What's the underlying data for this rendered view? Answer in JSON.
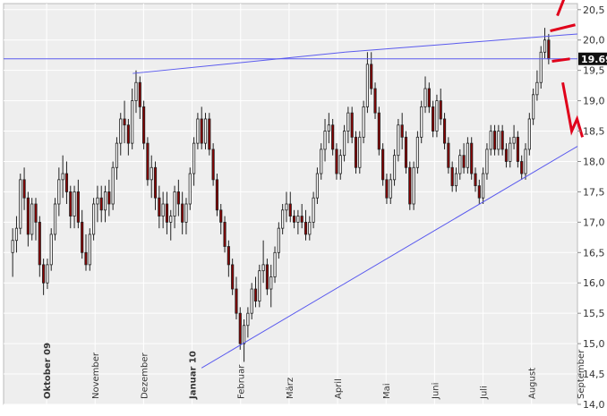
{
  "chart_data": {
    "type": "candlestick",
    "y_axis": {
      "side": "right",
      "ylim": [
        14.0,
        20.6
      ],
      "ticks": [
        14.0,
        14.5,
        15.0,
        15.5,
        16.0,
        16.5,
        17.0,
        17.5,
        18.0,
        18.5,
        19.0,
        19.5,
        20.0,
        20.5
      ]
    },
    "x_axis": {
      "tick_labels": [
        {
          "label": "Oktober 09",
          "bold": true
        },
        {
          "label": "November",
          "bold": false
        },
        {
          "label": "Dezember",
          "bold": false
        },
        {
          "label": "Januar 10",
          "bold": true
        },
        {
          "label": "Februar",
          "bold": false
        },
        {
          "label": "März",
          "bold": false
        },
        {
          "label": "April",
          "bold": false
        },
        {
          "label": "Mai",
          "bold": false
        },
        {
          "label": "Juni",
          "bold": false
        },
        {
          "label": "Juli",
          "bold": false
        },
        {
          "label": "August",
          "bold": false
        },
        {
          "label": "September",
          "bold": false
        }
      ]
    },
    "grid": true,
    "last_price": "19.69",
    "candles": [
      [
        16.5,
        16.9,
        16.1,
        16.7
      ],
      [
        16.7,
        17.1,
        16.5,
        16.9
      ],
      [
        16.9,
        17.8,
        16.8,
        17.7
      ],
      [
        17.7,
        17.9,
        17.2,
        17.4
      ],
      [
        17.4,
        17.5,
        16.6,
        16.8
      ],
      [
        16.8,
        17.4,
        16.7,
        17.3
      ],
      [
        17.3,
        17.4,
        16.7,
        17.0
      ],
      [
        17.0,
        17.1,
        16.1,
        16.3
      ],
      [
        16.3,
        16.4,
        15.8,
        16.0
      ],
      [
        16.0,
        16.4,
        15.9,
        16.3
      ],
      [
        16.3,
        16.9,
        16.2,
        16.8
      ],
      [
        16.8,
        17.4,
        16.7,
        17.3
      ],
      [
        17.3,
        17.9,
        17.1,
        17.7
      ],
      [
        17.7,
        18.1,
        17.4,
        17.8
      ],
      [
        17.8,
        18.0,
        17.3,
        17.5
      ],
      [
        17.5,
        17.6,
        16.9,
        17.1
      ],
      [
        17.1,
        17.6,
        16.9,
        17.5
      ],
      [
        17.5,
        17.7,
        16.9,
        17.0
      ],
      [
        17.0,
        17.2,
        16.4,
        16.5
      ],
      [
        16.5,
        16.8,
        16.2,
        16.3
      ],
      [
        16.3,
        16.9,
        16.2,
        16.8
      ],
      [
        16.8,
        17.4,
        16.7,
        17.3
      ],
      [
        17.3,
        17.6,
        17.0,
        17.4
      ],
      [
        17.4,
        17.6,
        17.0,
        17.2
      ],
      [
        17.2,
        17.6,
        17.0,
        17.5
      ],
      [
        17.5,
        17.7,
        17.1,
        17.3
      ],
      [
        17.3,
        18.0,
        17.2,
        17.9
      ],
      [
        17.9,
        18.4,
        17.7,
        18.3
      ],
      [
        18.3,
        18.8,
        18.1,
        18.7
      ],
      [
        18.7,
        19.0,
        18.3,
        18.6
      ],
      [
        18.6,
        18.7,
        18.1,
        18.3
      ],
      [
        18.3,
        19.2,
        18.2,
        19.0
      ],
      [
        19.0,
        19.5,
        18.8,
        19.3
      ],
      [
        19.3,
        19.4,
        18.7,
        18.9
      ],
      [
        18.9,
        19.0,
        18.2,
        18.3
      ],
      [
        18.3,
        18.4,
        17.6,
        17.7
      ],
      [
        17.7,
        18.1,
        17.4,
        17.9
      ],
      [
        17.9,
        18.0,
        17.2,
        17.4
      ],
      [
        17.4,
        17.6,
        16.9,
        17.1
      ],
      [
        17.1,
        17.5,
        16.9,
        17.3
      ],
      [
        17.3,
        17.5,
        16.8,
        17.0
      ],
      [
        17.0,
        17.2,
        16.7,
        17.1
      ],
      [
        17.1,
        17.6,
        16.9,
        17.5
      ],
      [
        17.5,
        17.7,
        17.1,
        17.3
      ],
      [
        17.3,
        17.5,
        16.8,
        17.0
      ],
      [
        17.0,
        17.4,
        16.8,
        17.3
      ],
      [
        17.3,
        17.9,
        17.2,
        17.8
      ],
      [
        17.8,
        18.4,
        17.6,
        18.3
      ],
      [
        18.3,
        18.8,
        18.2,
        18.7
      ],
      [
        18.7,
        18.9,
        18.2,
        18.3
      ],
      [
        18.3,
        18.8,
        18.2,
        18.7
      ],
      [
        18.7,
        18.8,
        18.1,
        18.2
      ],
      [
        18.2,
        18.3,
        17.6,
        17.7
      ],
      [
        17.7,
        17.8,
        17.1,
        17.2
      ],
      [
        17.2,
        17.3,
        16.8,
        17.0
      ],
      [
        17.0,
        17.1,
        16.5,
        16.6
      ],
      [
        16.6,
        16.7,
        16.1,
        16.3
      ],
      [
        16.3,
        16.4,
        15.8,
        15.9
      ],
      [
        15.9,
        16.1,
        15.4,
        15.5
      ],
      [
        15.5,
        15.6,
        14.9,
        15.0
      ],
      [
        15.0,
        15.4,
        14.7,
        15.3
      ],
      [
        15.3,
        15.6,
        15.1,
        15.5
      ],
      [
        15.5,
        16.0,
        15.4,
        15.9
      ],
      [
        15.9,
        16.1,
        15.6,
        15.7
      ],
      [
        15.7,
        16.3,
        15.6,
        16.2
      ],
      [
        16.2,
        16.7,
        16.0,
        16.3
      ],
      [
        16.3,
        16.4,
        15.8,
        15.9
      ],
      [
        15.9,
        16.3,
        15.6,
        16.1
      ],
      [
        16.1,
        16.6,
        16.0,
        16.5
      ],
      [
        16.5,
        17.0,
        16.4,
        16.9
      ],
      [
        16.9,
        17.3,
        16.8,
        17.2
      ],
      [
        17.2,
        17.5,
        17.0,
        17.3
      ],
      [
        17.3,
        17.5,
        17.0,
        17.1
      ],
      [
        17.1,
        17.2,
        16.9,
        17.0
      ],
      [
        17.0,
        17.2,
        16.8,
        17.1
      ],
      [
        17.1,
        17.3,
        16.9,
        17.0
      ],
      [
        17.0,
        17.2,
        16.7,
        16.8
      ],
      [
        16.8,
        17.1,
        16.7,
        17.0
      ],
      [
        17.0,
        17.5,
        16.9,
        17.4
      ],
      [
        17.4,
        17.9,
        17.3,
        17.8
      ],
      [
        17.8,
        18.3,
        17.7,
        18.2
      ],
      [
        18.2,
        18.7,
        18.0,
        18.5
      ],
      [
        18.5,
        18.8,
        18.3,
        18.6
      ],
      [
        18.6,
        18.7,
        18.1,
        18.2
      ],
      [
        18.2,
        18.3,
        17.7,
        17.8
      ],
      [
        17.8,
        18.2,
        17.7,
        18.1
      ],
      [
        18.1,
        18.6,
        18.0,
        18.5
      ],
      [
        18.5,
        18.9,
        18.3,
        18.8
      ],
      [
        18.8,
        18.9,
        18.3,
        18.4
      ],
      [
        18.4,
        18.5,
        17.8,
        17.9
      ],
      [
        17.9,
        18.5,
        17.8,
        18.4
      ],
      [
        18.4,
        19.0,
        18.3,
        18.9
      ],
      [
        18.9,
        19.8,
        18.8,
        19.6
      ],
      [
        19.6,
        19.8,
        19.1,
        19.2
      ],
      [
        19.2,
        19.3,
        18.7,
        18.8
      ],
      [
        18.8,
        18.9,
        18.1,
        18.2
      ],
      [
        18.2,
        18.3,
        17.6,
        17.7
      ],
      [
        17.7,
        17.8,
        17.3,
        17.4
      ],
      [
        17.4,
        17.8,
        17.3,
        17.7
      ],
      [
        17.7,
        18.2,
        17.6,
        18.1
      ],
      [
        18.1,
        18.7,
        18.0,
        18.6
      ],
      [
        18.6,
        18.8,
        18.2,
        18.4
      ],
      [
        18.4,
        18.5,
        17.8,
        17.9
      ],
      [
        17.9,
        18.0,
        17.2,
        17.3
      ],
      [
        17.3,
        18.0,
        17.2,
        17.9
      ],
      [
        17.9,
        18.5,
        17.8,
        18.4
      ],
      [
        18.4,
        19.0,
        18.3,
        18.9
      ],
      [
        18.9,
        19.4,
        18.8,
        19.2
      ],
      [
        19.2,
        19.3,
        18.8,
        18.9
      ],
      [
        18.9,
        19.0,
        18.4,
        18.5
      ],
      [
        18.5,
        19.1,
        18.4,
        19.0
      ],
      [
        19.0,
        19.2,
        18.6,
        18.7
      ],
      [
        18.7,
        18.8,
        18.2,
        18.3
      ],
      [
        18.3,
        18.4,
        17.8,
        17.9
      ],
      [
        17.9,
        18.0,
        17.5,
        17.6
      ],
      [
        17.6,
        17.9,
        17.5,
        17.8
      ],
      [
        17.8,
        18.2,
        17.7,
        18.1
      ],
      [
        18.1,
        18.3,
        17.8,
        17.9
      ],
      [
        17.9,
        18.4,
        17.8,
        18.3
      ],
      [
        18.3,
        18.4,
        17.7,
        17.8
      ],
      [
        17.8,
        17.9,
        17.5,
        17.6
      ],
      [
        17.6,
        17.7,
        17.3,
        17.4
      ],
      [
        17.4,
        17.9,
        17.3,
        17.8
      ],
      [
        17.8,
        18.3,
        17.7,
        18.2
      ],
      [
        18.2,
        18.6,
        18.1,
        18.5
      ],
      [
        18.5,
        18.6,
        18.1,
        18.2
      ],
      [
        18.2,
        18.6,
        18.1,
        18.5
      ],
      [
        18.5,
        18.6,
        18.1,
        18.2
      ],
      [
        18.2,
        18.3,
        17.9,
        18.0
      ],
      [
        18.0,
        18.4,
        17.9,
        18.3
      ],
      [
        18.3,
        18.6,
        18.2,
        18.4
      ],
      [
        18.4,
        18.5,
        17.9,
        18.0
      ],
      [
        18.0,
        18.1,
        17.7,
        17.8
      ],
      [
        17.8,
        18.3,
        17.7,
        18.2
      ],
      [
        18.2,
        18.8,
        18.1,
        18.7
      ],
      [
        18.7,
        19.2,
        18.6,
        19.1
      ],
      [
        19.1,
        19.5,
        19.0,
        19.3
      ],
      [
        19.3,
        19.9,
        19.2,
        19.8
      ],
      [
        19.8,
        20.2,
        19.7,
        20.0
      ],
      [
        20.0,
        20.1,
        19.6,
        19.69
      ]
    ],
    "trendlines": [
      {
        "from": [
          0.345,
          14.6
        ],
        "to": [
          1.0,
          18.25
        ]
      },
      {
        "from": [
          0.225,
          19.45
        ],
        "to": [
          0.595,
          19.8
        ]
      },
      {
        "from": [
          0.595,
          19.8
        ],
        "to": [
          1.0,
          20.1
        ]
      },
      {
        "from": [
          0.0,
          19.69
        ],
        "to": [
          1.0,
          19.69
        ]
      }
    ]
  },
  "colors": {
    "background": "#eeeeee",
    "grid": "#ffffff",
    "candle_up": "#ffffff",
    "candle_down": "#8b0000",
    "wick": "#222222",
    "trendline": "#5a5aee",
    "marker": "#e0001a",
    "last_price_bg": "#111111",
    "last_price_text": "#ffffff",
    "axis_text": "#333333"
  }
}
